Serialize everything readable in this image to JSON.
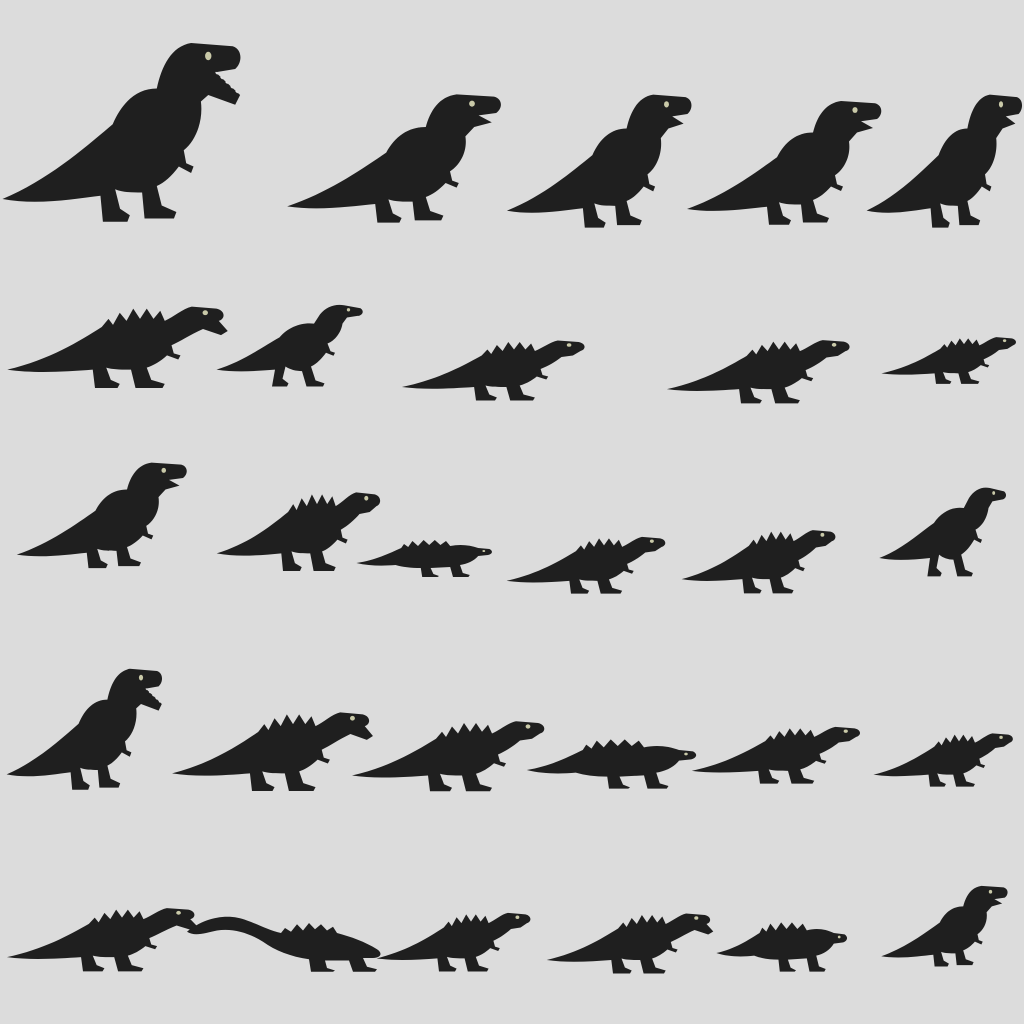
{
  "sheet": {
    "background": "#dcdcdc",
    "sprite_color": "#1f1f1f",
    "eye_color": "#c9c9a8",
    "rows": 5,
    "sprites_per_row": [
      5,
      5,
      6,
      6,
      6
    ]
  },
  "sprites": [
    {
      "name": "sprite-trex-roar-1",
      "kind": "trex",
      "pose": "roar",
      "facing": "right"
    },
    {
      "name": "sprite-trex-walk-1",
      "kind": "trex",
      "pose": "walk",
      "facing": "right"
    },
    {
      "name": "sprite-trex-walk-2",
      "kind": "trex",
      "pose": "walk",
      "facing": "right"
    },
    {
      "name": "sprite-trex-walk-3",
      "kind": "trex",
      "pose": "walk",
      "facing": "right"
    },
    {
      "name": "sprite-trex-walk-4",
      "kind": "trex",
      "pose": "walk",
      "facing": "right"
    },
    {
      "name": "sprite-spiked-roar-1",
      "kind": "spiked",
      "pose": "roar",
      "facing": "right"
    },
    {
      "name": "sprite-raptor-walk-1",
      "kind": "raptor",
      "pose": "walk",
      "facing": "right"
    },
    {
      "name": "sprite-spiked-walk-1",
      "kind": "spiked",
      "pose": "walk",
      "facing": "right"
    },
    {
      "name": "sprite-spiked-walk-2",
      "kind": "spiked",
      "pose": "walk",
      "facing": "right"
    },
    {
      "name": "sprite-spiked-walk-3",
      "kind": "spiked",
      "pose": "walk",
      "facing": "right"
    },
    {
      "name": "sprite-trex-run-1",
      "kind": "trex",
      "pose": "run",
      "facing": "right"
    },
    {
      "name": "sprite-spiked-stand-1",
      "kind": "spiked",
      "pose": "stand",
      "facing": "right"
    },
    {
      "name": "sprite-ankylo-walk-1",
      "kind": "ankylo",
      "pose": "walk",
      "facing": "right"
    },
    {
      "name": "sprite-spiked-walk-4",
      "kind": "spiked",
      "pose": "walk",
      "facing": "right"
    },
    {
      "name": "sprite-spiked-run-1",
      "kind": "spiked",
      "pose": "run",
      "facing": "right"
    },
    {
      "name": "sprite-raptor-run-1",
      "kind": "raptor",
      "pose": "run",
      "facing": "right"
    },
    {
      "name": "sprite-trex-roar-2",
      "kind": "trex",
      "pose": "roar",
      "facing": "right"
    },
    {
      "name": "sprite-spiked-roar-2",
      "kind": "spiked",
      "pose": "roar",
      "facing": "right"
    },
    {
      "name": "sprite-spiked-walk-5",
      "kind": "spiked",
      "pose": "walk",
      "facing": "right"
    },
    {
      "name": "sprite-ankylo-walk-2",
      "kind": "ankylo",
      "pose": "walk",
      "facing": "right"
    },
    {
      "name": "sprite-spiked-walk-6",
      "kind": "spiked",
      "pose": "walk",
      "facing": "right"
    },
    {
      "name": "sprite-spiked-walk-7",
      "kind": "spiked",
      "pose": "walk",
      "facing": "right"
    },
    {
      "name": "sprite-spiked-roar-3",
      "kind": "spiked",
      "pose": "roar",
      "facing": "right"
    },
    {
      "name": "sprite-sauropod-walk-1",
      "kind": "sauropod",
      "pose": "walk",
      "facing": "right"
    },
    {
      "name": "sprite-spiked-walk-8",
      "kind": "spiked",
      "pose": "walk",
      "facing": "right"
    },
    {
      "name": "sprite-spiked-roar-4",
      "kind": "spiked",
      "pose": "roar",
      "facing": "right"
    },
    {
      "name": "sprite-ankylo-walk-3",
      "kind": "ankylo",
      "pose": "walk",
      "facing": "right"
    },
    {
      "name": "sprite-trex-walk-5",
      "kind": "trex",
      "pose": "walk",
      "facing": "right"
    }
  ]
}
